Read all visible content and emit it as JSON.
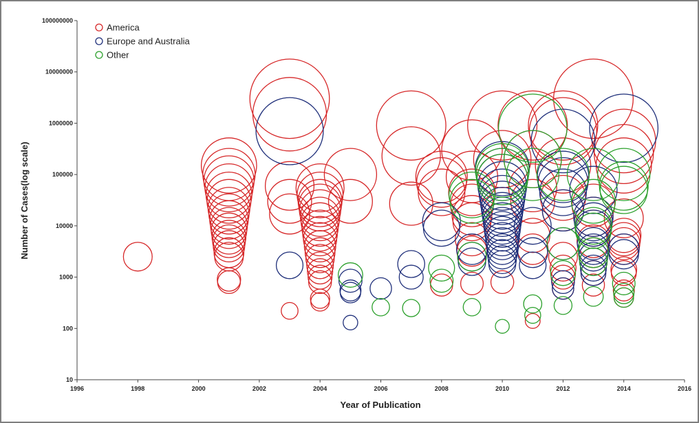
{
  "chart_data": {
    "type": "scatter",
    "title": "",
    "xlabel": "Year of Publication",
    "ylabel": "Number of Cases(log scale)",
    "x_ticks": [
      "1996",
      "1998",
      "2000",
      "2002",
      "2004",
      "2006",
      "2008",
      "2010",
      "2012",
      "2014",
      "2016"
    ],
    "y_ticks": [
      "10",
      "100",
      "1000",
      "10000",
      "100000",
      "1000000",
      "10000000",
      "100000000"
    ],
    "xlim": [
      1996,
      2016
    ],
    "ylim": [
      10,
      100000000
    ],
    "y_scale": "log",
    "marker": "hollow circle, radius grows with case count",
    "legend_placement": "top-left",
    "grid": false,
    "series": [
      {
        "name": "America",
        "color": "#d62728",
        "points": [
          [
            1998,
            2500
          ],
          [
            2001,
            800
          ],
          [
            2001,
            900
          ],
          [
            2001,
            2500
          ],
          [
            2001,
            3000
          ],
          [
            2001,
            4000
          ],
          [
            2001,
            5000
          ],
          [
            2001,
            6000
          ],
          [
            2001,
            8000
          ],
          [
            2001,
            10000
          ],
          [
            2001,
            13000
          ],
          [
            2001,
            17000
          ],
          [
            2001,
            22000
          ],
          [
            2001,
            30000
          ],
          [
            2001,
            40000
          ],
          [
            2001,
            55000
          ],
          [
            2001,
            75000
          ],
          [
            2001,
            100000
          ],
          [
            2001,
            150000
          ],
          [
            2003,
            220
          ],
          [
            2003,
            17000
          ],
          [
            2003,
            30000
          ],
          [
            2003,
            60000
          ],
          [
            2003,
            1500000
          ],
          [
            2003,
            3000000
          ],
          [
            2004,
            330
          ],
          [
            2004,
            380
          ],
          [
            2004,
            800
          ],
          [
            2004,
            1000
          ],
          [
            2004,
            1300
          ],
          [
            2004,
            1700
          ],
          [
            2004,
            2300
          ],
          [
            2004,
            3000
          ],
          [
            2004,
            4000
          ],
          [
            2004,
            5500
          ],
          [
            2004,
            7000
          ],
          [
            2004,
            9000
          ],
          [
            2004,
            12000
          ],
          [
            2004,
            15000
          ],
          [
            2004,
            20000
          ],
          [
            2004,
            25000
          ],
          [
            2004,
            30000
          ],
          [
            2004,
            40000
          ],
          [
            2004,
            55000
          ],
          [
            2005,
            30000
          ],
          [
            2005,
            100000
          ],
          [
            2007,
            27000
          ],
          [
            2007,
            230000
          ],
          [
            2007,
            900000
          ],
          [
            2008,
            700
          ],
          [
            2008,
            45000
          ],
          [
            2008,
            70000
          ],
          [
            2008,
            90000
          ],
          [
            2009,
            750
          ],
          [
            2009,
            3200
          ],
          [
            2009,
            5500
          ],
          [
            2009,
            12000
          ],
          [
            2009,
            16000
          ],
          [
            2009,
            25000
          ],
          [
            2009,
            45000
          ],
          [
            2009,
            90000
          ],
          [
            2009,
            300000
          ],
          [
            2010,
            800
          ],
          [
            2010,
            200000
          ],
          [
            2010,
            900000
          ],
          [
            2011,
            140
          ],
          [
            2011,
            3500
          ],
          [
            2011,
            6500
          ],
          [
            2011,
            30000
          ],
          [
            2011,
            55000
          ],
          [
            2011,
            200000
          ],
          [
            2011,
            900000
          ],
          [
            2012,
            600
          ],
          [
            2012,
            1000
          ],
          [
            2012,
            1500
          ],
          [
            2012,
            2500
          ],
          [
            2012,
            20000
          ],
          [
            2012,
            35000
          ],
          [
            2012,
            150000
          ],
          [
            2012,
            700000
          ],
          [
            2012,
            900000
          ],
          [
            2013,
            700
          ],
          [
            2013,
            1200
          ],
          [
            2013,
            2000
          ],
          [
            2013,
            3000
          ],
          [
            2013,
            5000
          ],
          [
            2013,
            9000
          ],
          [
            2013,
            15000
          ],
          [
            2013,
            25000
          ],
          [
            2013,
            3000000
          ],
          [
            2014,
            400
          ],
          [
            2014,
            550
          ],
          [
            2014,
            1200
          ],
          [
            2014,
            1400
          ],
          [
            2014,
            3500
          ],
          [
            2014,
            4500
          ],
          [
            2014,
            5500
          ],
          [
            2014,
            6500
          ],
          [
            2014,
            14000
          ],
          [
            2014,
            150000
          ],
          [
            2014,
            250000
          ],
          [
            2014,
            450000
          ]
        ]
      },
      {
        "name": "Europe and Australia",
        "color": "#1f2f7a",
        "points": [
          [
            2003,
            1700
          ],
          [
            2003,
            700000
          ],
          [
            2005,
            130
          ],
          [
            2005,
            500
          ],
          [
            2005,
            550
          ],
          [
            2005,
            850
          ],
          [
            2006,
            600
          ],
          [
            2007,
            1000
          ],
          [
            2007,
            1800
          ],
          [
            2008,
            9000
          ],
          [
            2008,
            12000
          ],
          [
            2009,
            2000
          ],
          [
            2009,
            2500
          ],
          [
            2009,
            3500
          ],
          [
            2010,
            1800
          ],
          [
            2010,
            2200
          ],
          [
            2010,
            2800
          ],
          [
            2010,
            3500
          ],
          [
            2010,
            4500
          ],
          [
            2010,
            5500
          ],
          [
            2010,
            7000
          ],
          [
            2010,
            8500
          ],
          [
            2010,
            10000
          ],
          [
            2010,
            12000
          ],
          [
            2010,
            15000
          ],
          [
            2010,
            18000
          ],
          [
            2010,
            22000
          ],
          [
            2010,
            28000
          ],
          [
            2010,
            35000
          ],
          [
            2010,
            45000
          ],
          [
            2010,
            60000
          ],
          [
            2010,
            80000
          ],
          [
            2010,
            100000
          ],
          [
            2010,
            130000
          ],
          [
            2011,
            1700
          ],
          [
            2011,
            3000
          ],
          [
            2011,
            10000
          ],
          [
            2012,
            600
          ],
          [
            2012,
            800
          ],
          [
            2012,
            4500
          ],
          [
            2012,
            20000
          ],
          [
            2012,
            45000
          ],
          [
            2012,
            70000
          ],
          [
            2012,
            90000
          ],
          [
            2012,
            450000
          ],
          [
            2013,
            1200
          ],
          [
            2013,
            1500
          ],
          [
            2013,
            2000
          ],
          [
            2013,
            2500
          ],
          [
            2013,
            3500
          ],
          [
            2013,
            4500
          ],
          [
            2013,
            9000
          ],
          [
            2013,
            12000
          ],
          [
            2013,
            15000
          ],
          [
            2013,
            50000
          ],
          [
            2014,
            2800
          ],
          [
            2014,
            3500
          ],
          [
            2014,
            800000
          ]
        ]
      },
      {
        "name": "Other",
        "color": "#2ca02c",
        "points": [
          [
            2005,
            1100
          ],
          [
            2006,
            260
          ],
          [
            2007,
            250
          ],
          [
            2008,
            850
          ],
          [
            2008,
            1500
          ],
          [
            2009,
            260
          ],
          [
            2009,
            2500
          ],
          [
            2009,
            30000
          ],
          [
            2009,
            40000
          ],
          [
            2010,
            110
          ],
          [
            2010,
            80000
          ],
          [
            2010,
            100000
          ],
          [
            2010,
            120000
          ],
          [
            2011,
            180
          ],
          [
            2011,
            300
          ],
          [
            2011,
            100000
          ],
          [
            2011,
            200000
          ],
          [
            2011,
            800000
          ],
          [
            2012,
            280
          ],
          [
            2012,
            1200
          ],
          [
            2012,
            4500
          ],
          [
            2012,
            100000
          ],
          [
            2013,
            420
          ],
          [
            2013,
            2000
          ],
          [
            2013,
            3000
          ],
          [
            2013,
            8000
          ],
          [
            2013,
            10000
          ],
          [
            2013,
            30000
          ],
          [
            2013,
            100000
          ],
          [
            2014,
            400
          ],
          [
            2014,
            480
          ],
          [
            2014,
            750
          ],
          [
            2014,
            50000
          ],
          [
            2014,
            60000
          ],
          [
            2014,
            100000
          ]
        ]
      }
    ]
  }
}
